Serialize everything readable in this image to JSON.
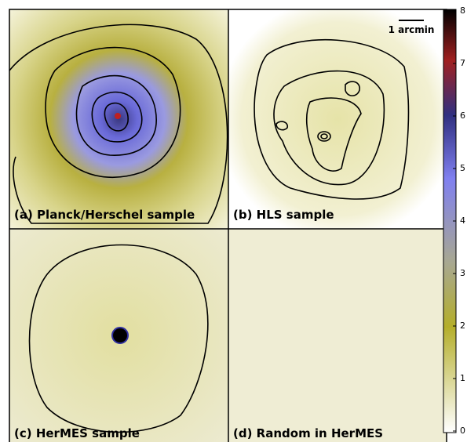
{
  "panels": [
    {
      "label": "(a) Planck/Herschel sample"
    },
    {
      "label": "(b) HLS sample"
    },
    {
      "label": "(c) HerMES sample"
    },
    {
      "label": "(d) Random in HerMES"
    }
  ],
  "scale_bar": "1 arcmin",
  "colorbar": {
    "lim": [
      0,
      8
    ],
    "ticks": [
      0,
      1,
      2,
      3,
      4,
      5,
      6,
      7,
      8
    ]
  }
}
